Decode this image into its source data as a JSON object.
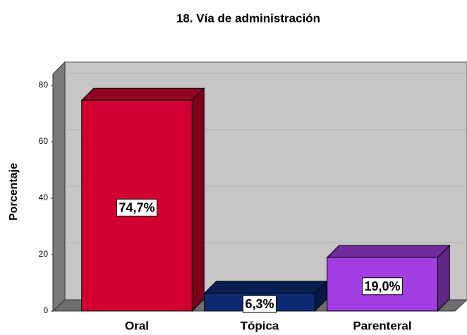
{
  "chart_data": {
    "type": "bar3d",
    "title": "18. Vía de administración",
    "y_label": "Porcentaje",
    "categories": [
      "Oral",
      "Tópica",
      "Parenteral"
    ],
    "values": [
      74.7,
      6.3,
      19.0
    ],
    "value_labels": [
      "74,7%",
      "6,3%",
      "19,0%"
    ],
    "colors": [
      "#d10030",
      "#0c2a72",
      "#a33ee3"
    ],
    "ylim": [
      0,
      80
    ],
    "yticks": [
      0,
      20,
      40,
      60,
      80
    ],
    "grid": true
  }
}
